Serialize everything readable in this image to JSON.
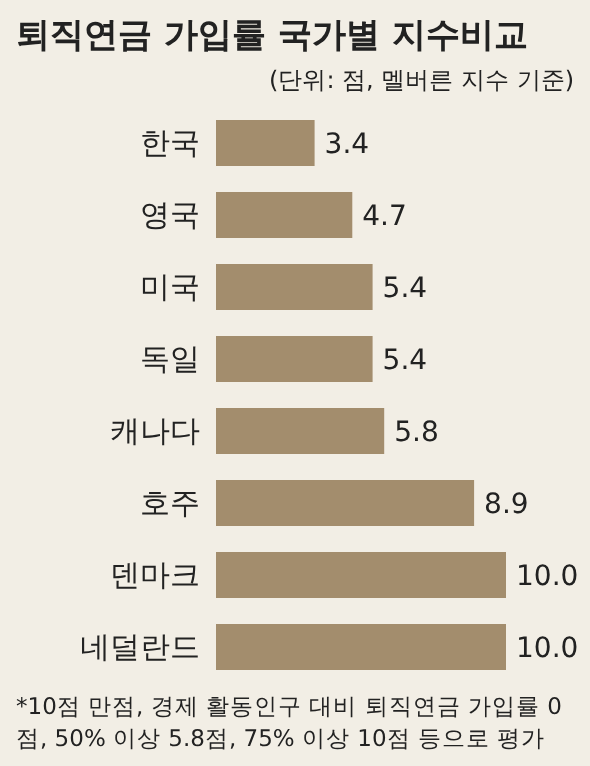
{
  "chart_data": {
    "type": "bar",
    "orientation": "horizontal",
    "title": "퇴직연금 가입률 국가별 지수비교",
    "subtitle": "(단위: 점, 멜버른 지수 기준)",
    "categories": [
      "한국",
      "영국",
      "미국",
      "독일",
      "캐나다",
      "호주",
      "덴마크",
      "네덜란드"
    ],
    "values": [
      3.4,
      4.7,
      5.4,
      5.4,
      5.8,
      8.9,
      10.0,
      10.0
    ],
    "value_labels": [
      "3.4",
      "4.7",
      "5.4",
      "5.4",
      "5.8",
      "8.9",
      "10.0",
      "10.0"
    ],
    "color": "#a38d6d",
    "grid": false,
    "legend": false,
    "annotations": [
      "*10점 만점, 경제 활동인구 대비 퇴직연금 가입률 0점, 50% 이상 5.8점, 75% 이상 10점 등으로 평가"
    ]
  }
}
